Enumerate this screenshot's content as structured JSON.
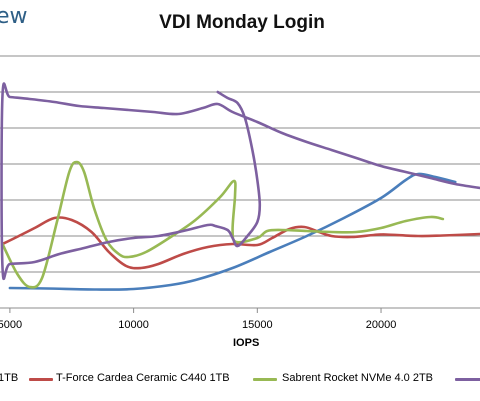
{
  "logo_text": "ew",
  "chart_data": {
    "type": "line",
    "title": "VDI Monday Login",
    "xlabel": "IOPS",
    "ylabel": "",
    "xlim": [
      4600,
      24000
    ],
    "x_ticks": [
      5000,
      10000,
      15000,
      20000
    ],
    "grid": "horizontal",
    "legend_position": "bottom",
    "series": [
      {
        "name": "1TB",
        "color": "#4a7ebb",
        "points": [
          [
            5000,
            288
          ],
          [
            6500,
            288.5
          ],
          [
            8500,
            289.5
          ],
          [
            10000,
            289
          ],
          [
            11500,
            285
          ],
          [
            12500,
            280
          ],
          [
            14000,
            268
          ],
          [
            15500,
            252
          ],
          [
            17000,
            236
          ],
          [
            18500,
            218
          ],
          [
            20000,
            198
          ],
          [
            21000,
            180
          ],
          [
            21500,
            174
          ],
          [
            22200,
            177
          ],
          [
            23000,
            182
          ]
        ]
      },
      {
        "name": "T-Force Cardea Ceramic C440 1TB",
        "color": "#be4b48",
        "points": [
          [
            4700,
            244
          ],
          [
            5200,
            238
          ],
          [
            6000,
            228
          ],
          [
            6800,
            218
          ],
          [
            7500,
            220
          ],
          [
            8300,
            232
          ],
          [
            9000,
            252
          ],
          [
            9700,
            266
          ],
          [
            10300,
            268
          ],
          [
            11000,
            264
          ],
          [
            12000,
            254
          ],
          [
            13000,
            247
          ],
          [
            14000,
            244
          ],
          [
            15000,
            245
          ],
          [
            15600,
            238
          ],
          [
            16300,
            229
          ],
          [
            16900,
            227
          ],
          [
            17500,
            232
          ],
          [
            18000,
            236
          ],
          [
            18800,
            237
          ],
          [
            19700,
            235
          ],
          [
            20200,
            234.5
          ],
          [
            21500,
            236
          ],
          [
            22500,
            235.5
          ],
          [
            24000,
            234
          ]
        ]
      },
      {
        "name": "Sabrent Rocket NVMe 4.0 2TB",
        "color": "#98b954",
        "points": [
          [
            4700,
            244
          ],
          [
            5300,
            274
          ],
          [
            5800,
            287
          ],
          [
            6300,
            278
          ],
          [
            6900,
            222
          ],
          [
            7400,
            172
          ],
          [
            7700,
            162
          ],
          [
            8000,
            172
          ],
          [
            8400,
            208
          ],
          [
            8900,
            240
          ],
          [
            9400,
            254
          ],
          [
            9800,
            257
          ],
          [
            10500,
            252
          ],
          [
            11500,
            237
          ],
          [
            12500,
            220
          ],
          [
            13500,
            197
          ],
          [
            14050,
            181
          ],
          [
            14100,
            195
          ],
          [
            14000,
            230
          ],
          [
            14150,
            242
          ],
          [
            15000,
            238
          ],
          [
            15400,
            231
          ],
          [
            16000,
            230
          ],
          [
            17000,
            231
          ],
          [
            18000,
            232
          ],
          [
            19000,
            232
          ],
          [
            20000,
            228
          ],
          [
            21000,
            221
          ],
          [
            22000,
            217
          ],
          [
            22500,
            219
          ]
        ]
      },
      {
        "name": "",
        "color": "#7d60a0",
        "points": [
          [
            13400,
            92
          ],
          [
            13800,
            98
          ],
          [
            14200,
            103
          ],
          [
            14500,
            118
          ],
          [
            14800,
            150
          ],
          [
            15000,
            180
          ],
          [
            15100,
            205
          ],
          [
            15000,
            222
          ],
          [
            14600,
            236
          ],
          [
            14200,
            246
          ],
          [
            14000,
            238
          ],
          [
            13800,
            230
          ],
          [
            13300,
            226
          ],
          [
            13000,
            225
          ],
          [
            12000,
            231
          ],
          [
            11000,
            236
          ],
          [
            10000,
            238
          ],
          [
            9000,
            242
          ],
          [
            8000,
            248
          ],
          [
            7000,
            254
          ],
          [
            6000,
            262
          ],
          [
            5000,
            264
          ],
          [
            4700,
            267
          ],
          [
            4700,
            96
          ],
          [
            5000,
            97
          ],
          [
            5800,
            99
          ],
          [
            6800,
            102
          ],
          [
            7800,
            106
          ],
          [
            8800,
            108
          ],
          [
            9800,
            110
          ],
          [
            10800,
            112
          ],
          [
            11800,
            114
          ],
          [
            12800,
            108
          ],
          [
            13400,
            104
          ],
          [
            14000,
            112
          ],
          [
            15000,
            122
          ],
          [
            16000,
            133
          ],
          [
            17000,
            142
          ],
          [
            18000,
            150
          ],
          [
            19000,
            158
          ],
          [
            20000,
            166
          ],
          [
            21000,
            172
          ],
          [
            22000,
            178
          ],
          [
            23000,
            184
          ],
          [
            24000,
            188
          ]
        ]
      }
    ]
  }
}
